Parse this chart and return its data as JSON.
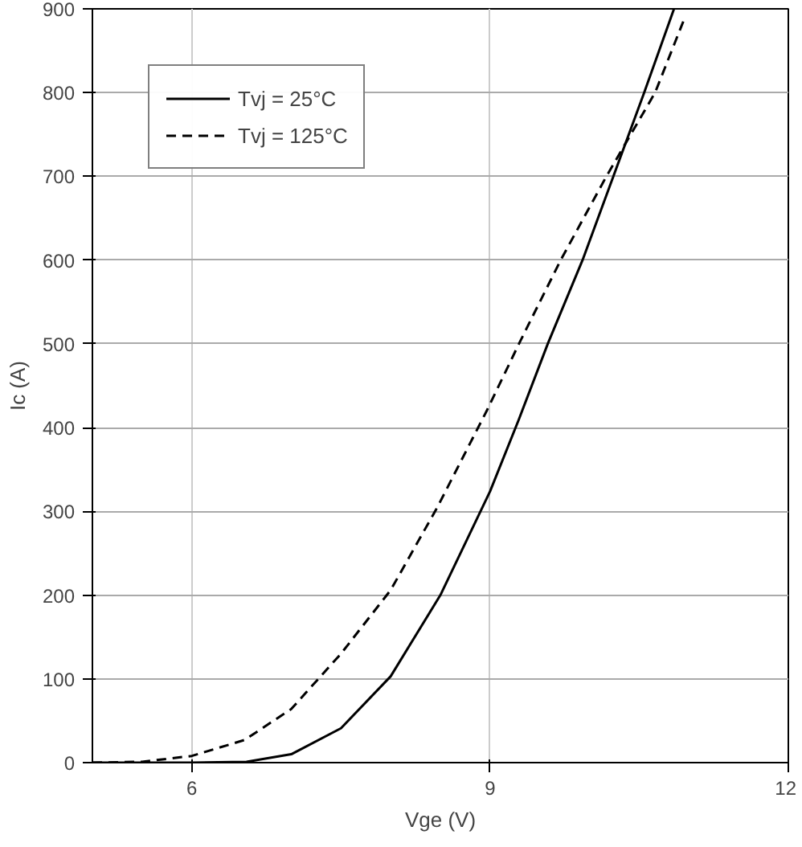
{
  "chart_data": {
    "type": "line",
    "xlabel": "Vge (V)",
    "ylabel": "Ic (A)",
    "xlim": [
      5,
      12
    ],
    "ylim": [
      0,
      900
    ],
    "xticks": [
      6,
      9,
      12
    ],
    "yticks": [
      0,
      100,
      200,
      300,
      400,
      500,
      600,
      700,
      800,
      900
    ],
    "grid": true,
    "legend": "top left",
    "series": [
      {
        "name": "Tvj = 25°C",
        "color": "#000000",
        "line_style": "solid",
        "x": [
          5,
          6,
          6.55,
          7,
          7.5,
          8,
          8.5,
          9,
          9.29,
          9.58,
          9.93,
          10.24,
          10.55,
          10.85
        ],
        "values": [
          0,
          0,
          1,
          10,
          41,
          103,
          200,
          324,
          410,
          500,
          600,
          700,
          800,
          900
        ]
      },
      {
        "name": "Tvj = 125°C",
        "color": "#000000",
        "line_style": "dashed",
        "x": [
          5,
          5.5,
          6,
          6.53,
          7,
          7.5,
          8,
          8.47,
          8.97,
          9.29,
          9.71,
          10.17,
          10.66,
          10.95
        ],
        "values": [
          0,
          1,
          8,
          27,
          64,
          130,
          206,
          305,
          421,
          500,
          600,
          700,
          800,
          887
        ]
      }
    ]
  }
}
